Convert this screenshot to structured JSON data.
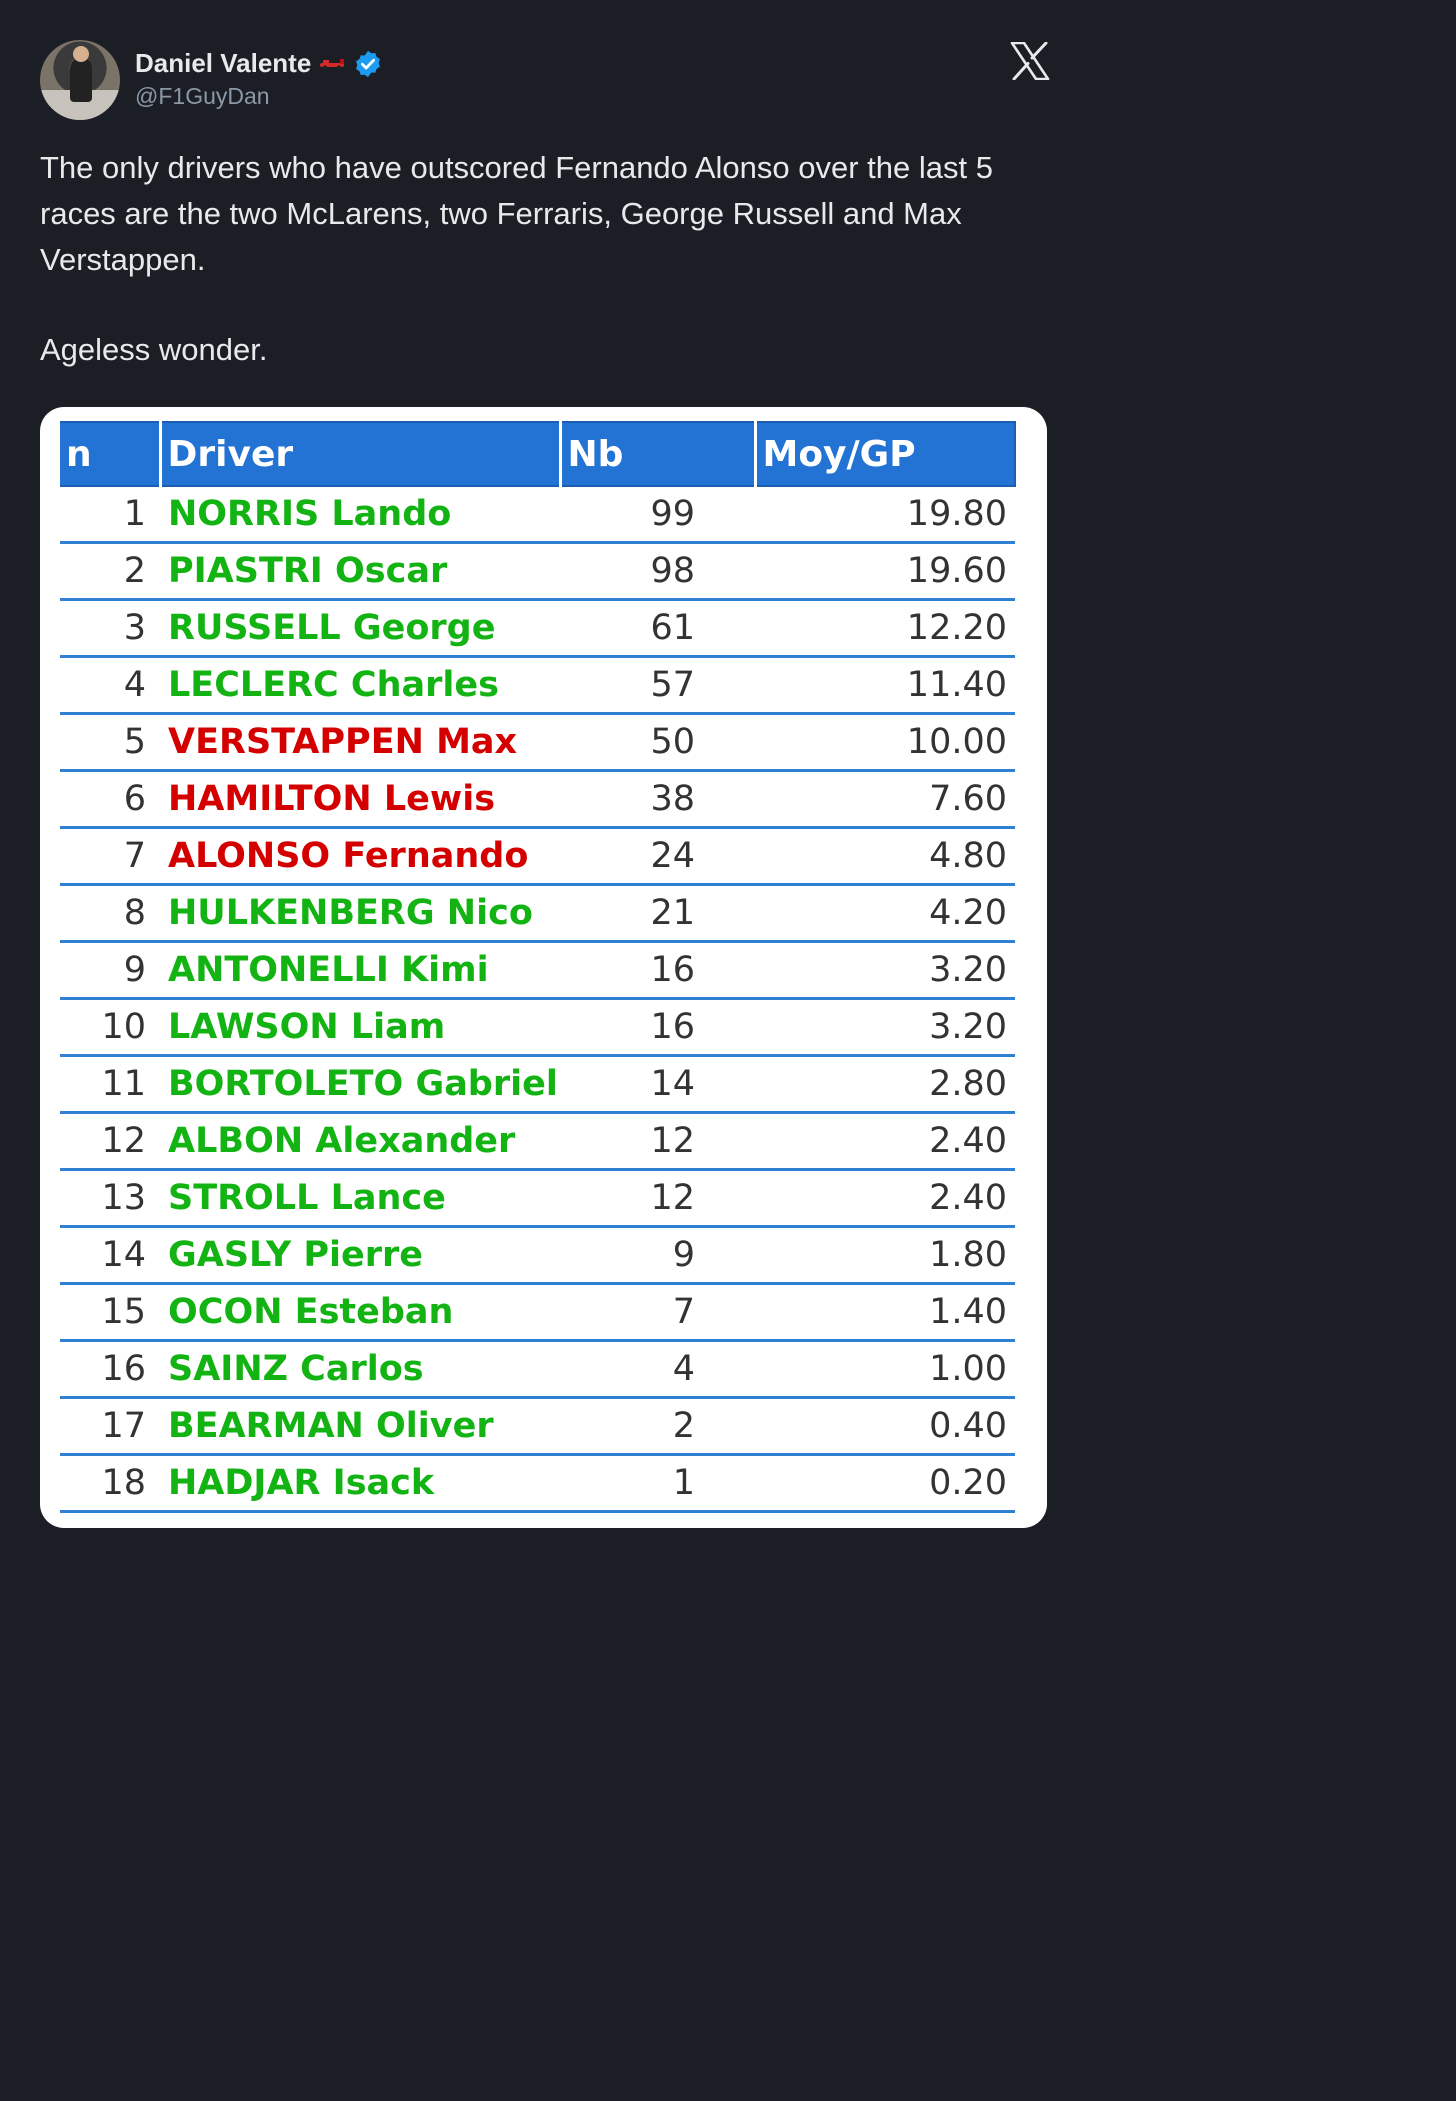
{
  "tweet": {
    "display_name": "Daniel Valente",
    "handle": "@F1GuyDan",
    "text_paragraphs": [
      "The only drivers who have outscored Fernando Alonso over the last 5 races are the two McLarens, two Ferraris, George Russell and Max Verstappen.",
      "Ageless wonder."
    ]
  },
  "icons": {
    "avatar": "avatar-photo",
    "car": "f1-car-icon",
    "verified": "verified-badge-icon",
    "platform": "x-logo-icon"
  },
  "colors": {
    "background": "#1c1e26",
    "verified": "#1d9bf0",
    "header_blue": "#2273d3",
    "row_line": "#2f7fd3",
    "green_driver": "#12b312",
    "red_driver": "#d40000"
  },
  "table": {
    "headers": [
      "n",
      "Driver",
      "Nb",
      "Moy/GP"
    ],
    "rows": [
      {
        "n": "1",
        "driver": "NORRIS Lando",
        "nb": "99",
        "moy": "19.80",
        "color": "green"
      },
      {
        "n": "2",
        "driver": "PIASTRI Oscar",
        "nb": "98",
        "moy": "19.60",
        "color": "green"
      },
      {
        "n": "3",
        "driver": "RUSSELL George",
        "nb": "61",
        "moy": "12.20",
        "color": "green"
      },
      {
        "n": "4",
        "driver": "LECLERC Charles",
        "nb": "57",
        "moy": "11.40",
        "color": "green"
      },
      {
        "n": "5",
        "driver": "VERSTAPPEN Max",
        "nb": "50",
        "moy": "10.00",
        "color": "red"
      },
      {
        "n": "6",
        "driver": "HAMILTON Lewis",
        "nb": "38",
        "moy": "7.60",
        "color": "red"
      },
      {
        "n": "7",
        "driver": "ALONSO Fernando",
        "nb": "24",
        "moy": "4.80",
        "color": "red"
      },
      {
        "n": "8",
        "driver": "HULKENBERG Nico",
        "nb": "21",
        "moy": "4.20",
        "color": "green"
      },
      {
        "n": "9",
        "driver": "ANTONELLI Kimi",
        "nb": "16",
        "moy": "3.20",
        "color": "green"
      },
      {
        "n": "10",
        "driver": "LAWSON Liam",
        "nb": "16",
        "moy": "3.20",
        "color": "green"
      },
      {
        "n": "11",
        "driver": "BORTOLETO Gabriel",
        "nb": "14",
        "moy": "2.80",
        "color": "green"
      },
      {
        "n": "12",
        "driver": "ALBON Alexander",
        "nb": "12",
        "moy": "2.40",
        "color": "green"
      },
      {
        "n": "13",
        "driver": "STROLL Lance",
        "nb": "12",
        "moy": "2.40",
        "color": "green"
      },
      {
        "n": "14",
        "driver": "GASLY Pierre",
        "nb": "9",
        "moy": "1.80",
        "color": "green"
      },
      {
        "n": "15",
        "driver": "OCON Esteban",
        "nb": "7",
        "moy": "1.40",
        "color": "green"
      },
      {
        "n": "16",
        "driver": "SAINZ Carlos",
        "nb": "4",
        "moy": "1.00",
        "color": "green"
      },
      {
        "n": "17",
        "driver": "BEARMAN Oliver",
        "nb": "2",
        "moy": "0.40",
        "color": "green"
      },
      {
        "n": "18",
        "driver": "HADJAR Isack",
        "nb": "1",
        "moy": "0.20",
        "color": "green"
      }
    ]
  }
}
